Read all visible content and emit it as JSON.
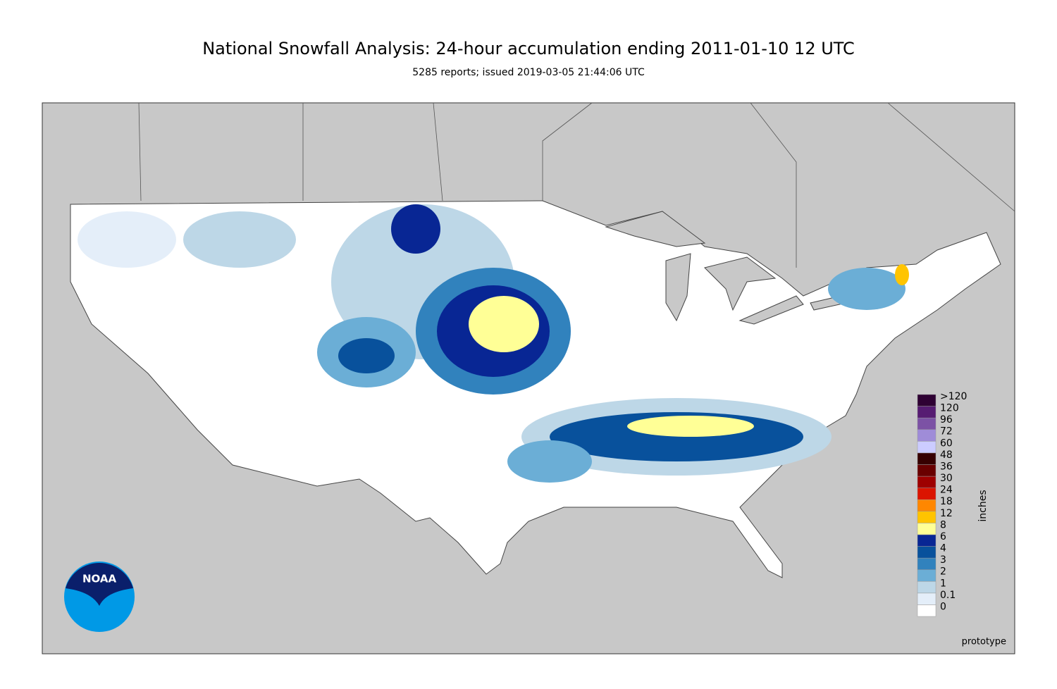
{
  "title": "National Snowfall Analysis: 24-hour accumulation ending 2011-01-10 12 UTC",
  "subtitle": "5285 reports; issued 2019-03-05 21:44:06 UTC",
  "legend": {
    "unit": "inches",
    "entries": [
      {
        "label": "0",
        "color": "#ffffff"
      },
      {
        "label": "0.1",
        "color": "#e4eef9"
      },
      {
        "label": "1",
        "color": "#bdd7e7"
      },
      {
        "label": "2",
        "color": "#6baed6"
      },
      {
        "label": "3",
        "color": "#3182bd"
      },
      {
        "label": "4",
        "color": "#08519c"
      },
      {
        "label": "6",
        "color": "#082694"
      },
      {
        "label": "8",
        "color": "#ffff96"
      },
      {
        "label": "12",
        "color": "#ffc400"
      },
      {
        "label": "18",
        "color": "#ff8700"
      },
      {
        "label": "24",
        "color": "#db1400"
      },
      {
        "label": "30",
        "color": "#9e0000"
      },
      {
        "label": "36",
        "color": "#690000"
      },
      {
        "label": "48",
        "color": "#360000"
      },
      {
        "label": "60",
        "color": "#ccccff"
      },
      {
        "label": "72",
        "color": "#9f8cd8"
      },
      {
        "label": "96",
        "color": "#7c52a5"
      },
      {
        "label": "120",
        "color": "#561c72"
      },
      {
        "label": ">120",
        "color": "#2e0133"
      }
    ]
  },
  "logo": "NOAA",
  "note": "prototype"
}
